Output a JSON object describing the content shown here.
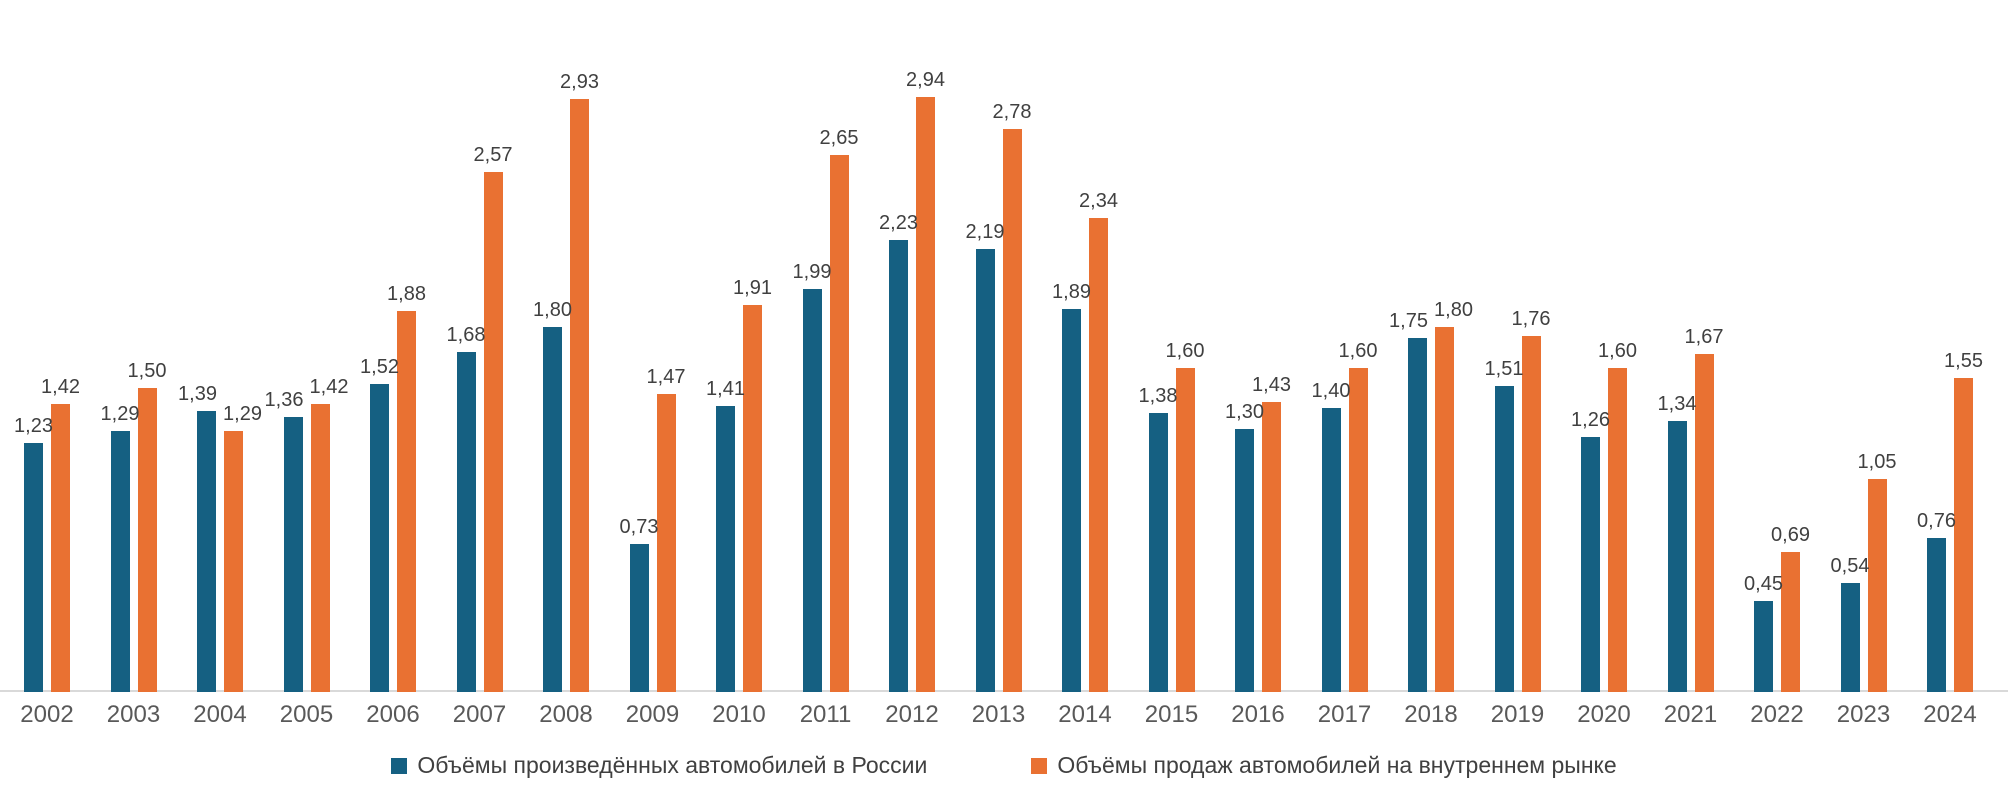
{
  "chart_data": {
    "type": "bar",
    "title": "",
    "categories": [
      "2002",
      "2003",
      "2004",
      "2005",
      "2006",
      "2007",
      "2008",
      "2009",
      "2010",
      "2011",
      "2012",
      "2013",
      "2014",
      "2015",
      "2016",
      "2017",
      "2018",
      "2019",
      "2020",
      "2021",
      "2022",
      "2023",
      "2024"
    ],
    "series": [
      {
        "key": "production",
        "name": "Объёмы произведённых автомобилей в России",
        "color": "#156082",
        "values": [
          1.23,
          1.29,
          1.39,
          1.36,
          1.52,
          1.68,
          1.8,
          0.73,
          1.41,
          1.99,
          2.23,
          2.19,
          1.89,
          1.38,
          1.3,
          1.4,
          1.75,
          1.51,
          1.26,
          1.34,
          0.45,
          0.54,
          0.76
        ]
      },
      {
        "key": "sales",
        "name": "Объёмы продаж автомобилей на внутреннем рынке",
        "color": "#E97132",
        "values": [
          1.42,
          1.5,
          1.29,
          1.42,
          1.88,
          2.57,
          2.93,
          1.47,
          1.91,
          2.65,
          2.94,
          2.78,
          2.34,
          1.6,
          1.43,
          1.6,
          1.8,
          1.76,
          1.6,
          1.67,
          0.69,
          1.05,
          1.55
        ]
      }
    ],
    "value_labels": true,
    "decimal_separator": ",",
    "ylim": [
      0,
      3
    ],
    "grid": false,
    "legend_position": "bottom",
    "colors": {
      "data_label": "#404040",
      "axis_tick_label": "#595959",
      "axis_line": "#d9d9d9",
      "background": "#ffffff"
    }
  }
}
